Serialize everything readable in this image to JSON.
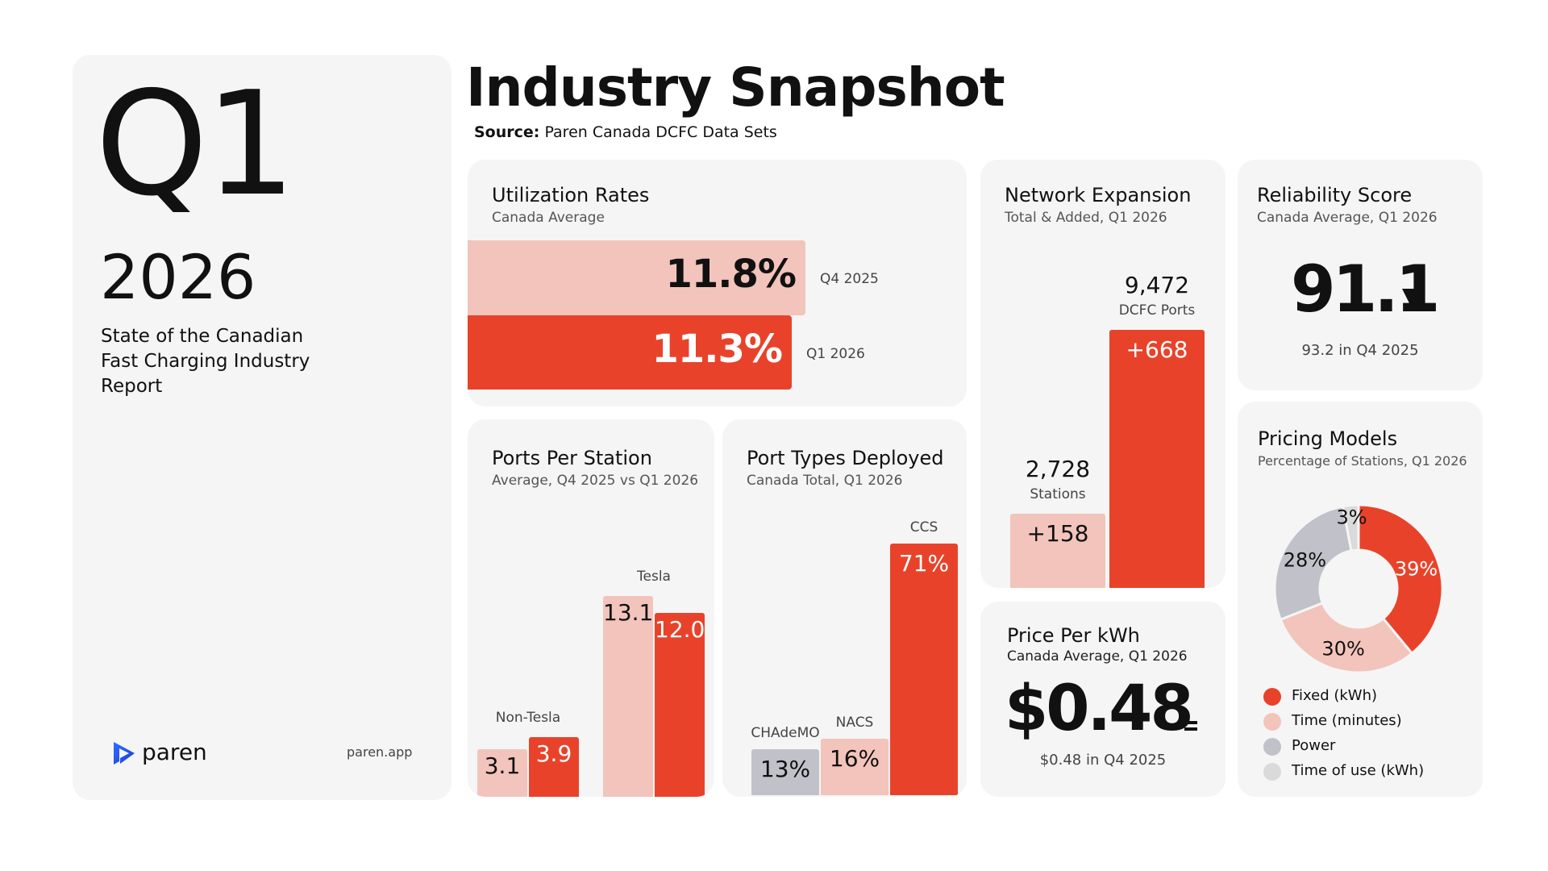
{
  "colors": {
    "red": "#e8432a",
    "pink": "#f2c4bb",
    "gray": "#c1c1c9",
    "lightgray": "#dadada",
    "card": "#f5f5f5"
  },
  "cover": {
    "quarter": "Q1",
    "year": "2026",
    "report_line1": "State of the Canadian",
    "report_line2": "Fast Charging Industry",
    "report_line3": "Report",
    "brand": "paren",
    "site": "paren.app",
    "logo_icon": "paren-logo-icon"
  },
  "header": {
    "title": "Industry Snapshot",
    "source_label": "Source:",
    "source_text": "Paren Canada DCFC Data Sets"
  },
  "utilization": {
    "title": "Utilization Rates",
    "subtitle": "Canada Average"
  },
  "ports_per_station": {
    "title": "Ports Per Station",
    "subtitle": "Average, Q4 2025 vs Q1 2026"
  },
  "port_types": {
    "title": "Port Types Deployed",
    "subtitle": "Canada Total, Q1 2026"
  },
  "network": {
    "title": "Network Expansion",
    "subtitle": "Total & Added, Q1 2026"
  },
  "reliability": {
    "title": "Reliability Score",
    "subtitle": "Canada Average, Q1 2026",
    "value": "91.1",
    "trend_icon": "down-triangle-icon",
    "previous": "93.2 in Q4 2025"
  },
  "price": {
    "title": "Price Per kWh",
    "subtitle": "Canada Average, Q1 2026",
    "value": "$0.48",
    "trend_icon": "equals-icon",
    "previous": "$0.48 in Q4 2025"
  },
  "pricing": {
    "title": "Pricing Models",
    "subtitle": "Percentage of Stations, Q1 2026"
  },
  "chart_data": [
    {
      "id": "utilization",
      "type": "bar",
      "orientation": "horizontal",
      "title": "Utilization Rates",
      "categories": [
        "Q4 2025",
        "Q1 2026"
      ],
      "values": [
        11.8,
        11.3
      ],
      "value_labels": [
        "11.8%",
        "11.3%"
      ],
      "unit": "%",
      "colors": [
        "#f2c4bb",
        "#e8432a"
      ]
    },
    {
      "id": "ports_per_station",
      "type": "bar",
      "title": "Ports Per Station",
      "categories": [
        "Non-Tesla",
        "Tesla"
      ],
      "series": [
        {
          "values": [
            3.1,
            13.1
          ],
          "labels": [
            "3.1",
            "13.1"
          ],
          "color": "#f2c4bb"
        },
        {
          "values": [
            3.9,
            12.0
          ],
          "labels": [
            "3.9",
            "12.0"
          ],
          "color": "#e8432a"
        }
      ]
    },
    {
      "id": "port_types",
      "type": "bar",
      "title": "Port Types Deployed",
      "categories": [
        "CHAdeMO",
        "NACS",
        "CCS"
      ],
      "values": [
        13,
        16,
        71
      ],
      "value_labels": [
        "13%",
        "16%",
        "71%"
      ],
      "unit": "%",
      "colors": [
        "#c1c1c9",
        "#f2c4bb",
        "#e8432a"
      ]
    },
    {
      "id": "network",
      "type": "bar",
      "title": "Network Expansion",
      "categories": [
        "Stations",
        "DCFC Ports"
      ],
      "totals": [
        2728,
        9472
      ],
      "total_labels": [
        "2,728",
        "9,472"
      ],
      "added_labels": [
        "+158",
        "+668"
      ],
      "colors": [
        "#f2c4bb",
        "#e8432a"
      ]
    },
    {
      "id": "pricing",
      "type": "pie",
      "donut": true,
      "title": "Pricing Models",
      "categories": [
        "Fixed (kWh)",
        "Time (minutes)",
        "Power",
        "Time of use (kWh)"
      ],
      "values": [
        39,
        30,
        28,
        3
      ],
      "value_labels": [
        "39%",
        "30%",
        "28%",
        "3%"
      ],
      "colors": [
        "#e8432a",
        "#f2c4bb",
        "#c1c1c9",
        "#dadada"
      ],
      "label_colors": [
        "#ffffff",
        "#111111",
        "#111111",
        "#111111"
      ],
      "legend": "bottom"
    }
  ]
}
